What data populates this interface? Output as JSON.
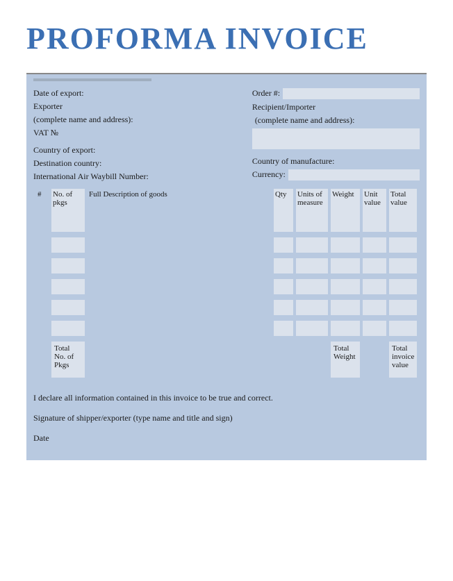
{
  "colors": {
    "title": "#3b6fb3",
    "panel_bg": "#b8c9e0",
    "cell_bg": "#dbe2ec",
    "text": "#1a1a1a",
    "divider": "#888888"
  },
  "title": "PROFORMA INVOICE",
  "header": {
    "left": {
      "date_of_export": "Date of export:",
      "exporter": "Exporter",
      "name_address": "(complete name and address):",
      "vat": "VAT №",
      "country_of_export": "Country of export:",
      "destination_country": "Destination country:",
      "air_waybill": "International Air Waybill Number:"
    },
    "right": {
      "order_no": "Order #:",
      "recipient": "Recipient/Importer",
      "name_address": "(complete name and address):",
      "country_of_manufacture": "Country of manufacture:",
      "currency": "Currency:"
    }
  },
  "table": {
    "columns": {
      "hash": "#",
      "no_pkgs": "No. of pkgs",
      "description": "Full Description of goods",
      "qty": "Qty",
      "units_of_measure": "Units of measure",
      "weight": "Weight",
      "unit_value": "Unit value",
      "total_value": "Total value"
    },
    "row_count": 6,
    "light_columns": [
      "no_pkgs",
      "qty",
      "units_of_measure",
      "weight",
      "unit_value",
      "total_value"
    ],
    "totals": {
      "total_pkgs": "Total No. of Pkgs",
      "total_weight": "Total Weight",
      "total_invoice_value": "Total invoice value"
    }
  },
  "footer": {
    "declaration": "I declare all information contained in this invoice to be true and correct.",
    "signature": "Signature of shipper/exporter (type name and title and sign)",
    "date": "Date"
  }
}
